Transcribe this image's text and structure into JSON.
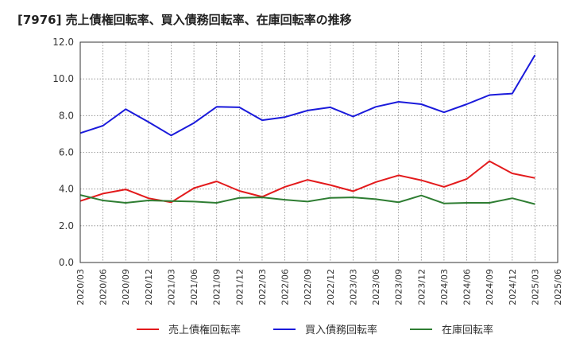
{
  "chart_data": {
    "type": "line",
    "title": "[7976]  売上債権回転率、買入債務回転率、在庫回転率の推移",
    "xlabel": "",
    "ylabel": "",
    "ylim": [
      0,
      12
    ],
    "yticks": [
      "0.0",
      "2.0",
      "4.0",
      "6.0",
      "8.0",
      "10.0",
      "12.0"
    ],
    "grid": true,
    "legend_position": "bottom",
    "categories": [
      "2020/03",
      "2020/06",
      "2020/09",
      "2020/12",
      "2021/03",
      "2021/06",
      "2021/09",
      "2021/12",
      "2022/03",
      "2022/06",
      "2022/09",
      "2022/12",
      "2023/03",
      "2023/06",
      "2023/09",
      "2023/12",
      "2024/03",
      "2024/06",
      "2024/09",
      "2024/12",
      "2025/03",
      "2025/06"
    ],
    "series": [
      {
        "name": "売上債権回転率",
        "color": "#e31a1c",
        "values": [
          3.35,
          3.75,
          3.98,
          3.5,
          3.28,
          4.05,
          4.42,
          3.9,
          3.58,
          4.12,
          4.5,
          4.22,
          3.88,
          4.38,
          4.75,
          4.48,
          4.12,
          4.55,
          5.52,
          4.85,
          4.6,
          null
        ]
      },
      {
        "name": "買入債務回転率",
        "color": "#1a1adb",
        "values": [
          7.05,
          7.45,
          8.35,
          7.65,
          6.92,
          7.6,
          8.48,
          8.45,
          7.75,
          7.92,
          8.28,
          8.45,
          7.95,
          8.48,
          8.75,
          8.62,
          8.18,
          8.62,
          9.12,
          9.2,
          11.3,
          null
        ]
      },
      {
        "name": "在庫回転率",
        "color": "#2e7d32",
        "values": [
          3.68,
          3.38,
          3.25,
          3.38,
          3.35,
          3.32,
          3.25,
          3.52,
          3.55,
          3.42,
          3.32,
          3.52,
          3.55,
          3.45,
          3.28,
          3.65,
          3.22,
          3.25,
          3.25,
          3.5,
          3.18,
          null
        ]
      }
    ]
  }
}
